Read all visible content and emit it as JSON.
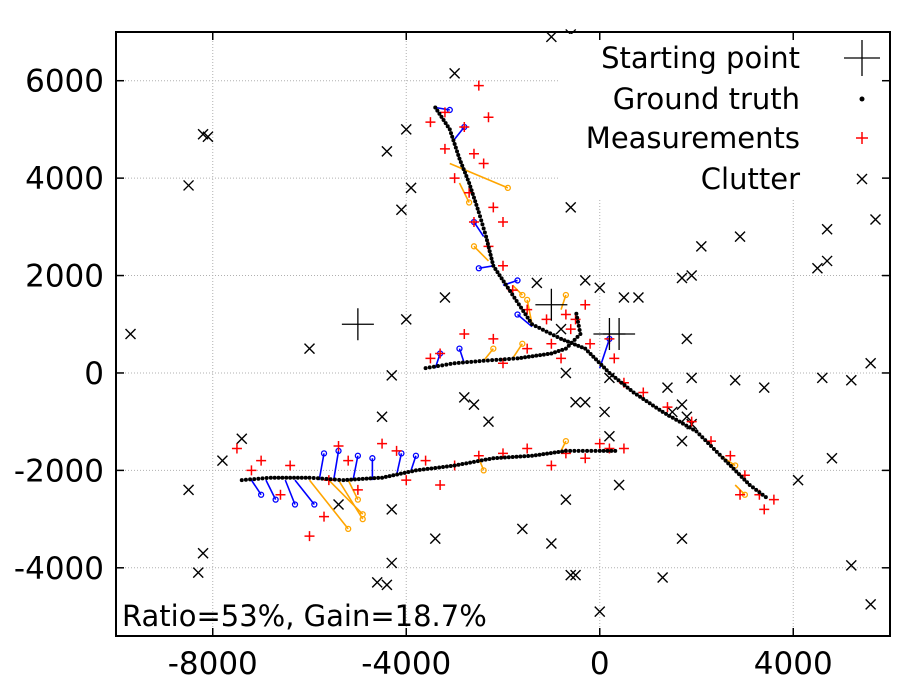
{
  "chart_data": {
    "type": "scatter",
    "xlim": [
      -10000,
      6000
    ],
    "ylim": [
      -5400,
      7000
    ],
    "x_ticks": [
      -8000,
      -4000,
      0,
      4000
    ],
    "y_ticks": [
      -4000,
      -2000,
      0,
      2000,
      4000,
      6000
    ],
    "x_tick_labels": [
      "-8000",
      "-4000",
      "0",
      "4000"
    ],
    "y_tick_labels": [
      "-4000",
      "-2000",
      "0",
      "2000",
      "4000",
      "6000"
    ],
    "grid": true,
    "legend_position": "top-right",
    "annotation": "Ratio=53%, Gain=18.7%",
    "legend": [
      {
        "label": "Starting point",
        "marker": "plus-large",
        "color": "#000000"
      },
      {
        "label": "Ground truth",
        "marker": "dot",
        "color": "#000000"
      },
      {
        "label": "Measurements",
        "marker": "plus",
        "color": "#ff0000"
      },
      {
        "label": "Clutter",
        "marker": "x",
        "color": "#000000"
      }
    ],
    "colors": {
      "truth": "#000000",
      "measurement": "#ff0000",
      "track_a": "#0000ff",
      "track_b": "#ffa500",
      "clutter": "#000000",
      "grid": "#b0b0b0"
    },
    "starting_points": [
      {
        "x": 200,
        "y": 800
      },
      {
        "x": 400,
        "y": 800
      },
      {
        "x": -1000,
        "y": 1400
      },
      {
        "x": -5000,
        "y": 1000
      }
    ],
    "ground_truth_paths": [
      {
        "name": "track-north",
        "points": [
          [
            -3400,
            5450
          ],
          [
            -3100,
            5000
          ],
          [
            -2900,
            4400
          ],
          [
            -2700,
            3900
          ],
          [
            -2500,
            3300
          ],
          [
            -2350,
            2800
          ],
          [
            -2200,
            2200
          ],
          [
            -1900,
            1750
          ],
          [
            -1400,
            1000
          ],
          [
            -800,
            700
          ],
          [
            -300,
            500
          ],
          [
            200,
            0
          ],
          [
            700,
            -400
          ],
          [
            1300,
            -800
          ],
          [
            2000,
            -1200
          ],
          [
            2600,
            -1800
          ],
          [
            3100,
            -2300
          ],
          [
            3500,
            -2600
          ]
        ]
      },
      {
        "name": "track-middle",
        "points": [
          [
            -3600,
            100
          ],
          [
            -3000,
            200
          ],
          [
            -2400,
            250
          ],
          [
            -1700,
            300
          ],
          [
            -1000,
            400
          ],
          [
            -700,
            500
          ],
          [
            -400,
            800
          ],
          [
            -500,
            1300
          ]
        ]
      },
      {
        "name": "track-south",
        "points": [
          [
            -7400,
            -2200
          ],
          [
            -6800,
            -2150
          ],
          [
            -6000,
            -2150
          ],
          [
            -5300,
            -2200
          ],
          [
            -4500,
            -2150
          ],
          [
            -3800,
            -2000
          ],
          [
            -3000,
            -1900
          ],
          [
            -2200,
            -1750
          ],
          [
            -1400,
            -1700
          ],
          [
            -700,
            -1600
          ],
          [
            0,
            -1600
          ],
          [
            400,
            -1600
          ]
        ]
      }
    ],
    "measurements": [
      [
        -3500,
        5150
      ],
      [
        -3200,
        5350
      ],
      [
        -2800,
        5050
      ],
      [
        -2500,
        5900
      ],
      [
        -2300,
        5250
      ],
      [
        -3200,
        4600
      ],
      [
        -2600,
        4500
      ],
      [
        -2400,
        4300
      ],
      [
        -3000,
        4000
      ],
      [
        -2700,
        3700
      ],
      [
        -2200,
        3400
      ],
      [
        -2600,
        3100
      ],
      [
        -2000,
        3100
      ],
      [
        -2300,
        2600
      ],
      [
        -2000,
        2200
      ],
      [
        -1800,
        1700
      ],
      [
        -1500,
        1300
      ],
      [
        -1100,
        1100
      ],
      [
        -600,
        900
      ],
      [
        -200,
        600
      ],
      [
        300,
        300
      ],
      [
        500,
        -200
      ],
      [
        900,
        -400
      ],
      [
        1400,
        -700
      ],
      [
        1900,
        -1000
      ],
      [
        2300,
        -1400
      ],
      [
        2700,
        -1700
      ],
      [
        3000,
        -2100
      ],
      [
        3300,
        -2500
      ],
      [
        3600,
        -2600
      ],
      [
        2900,
        -2500
      ],
      [
        3400,
        -2800
      ],
      [
        -3500,
        300
      ],
      [
        -3300,
        400
      ],
      [
        -2800,
        800
      ],
      [
        -2200,
        700
      ],
      [
        -2000,
        200
      ],
      [
        -1500,
        500
      ],
      [
        -1000,
        600
      ],
      [
        -800,
        300
      ],
      [
        -500,
        1100
      ],
      [
        -700,
        1200
      ],
      [
        -300,
        1400
      ],
      [
        200,
        700
      ],
      [
        -7500,
        -1550
      ],
      [
        -7200,
        -2000
      ],
      [
        -7000,
        -1800
      ],
      [
        -6600,
        -2500
      ],
      [
        -6400,
        -1900
      ],
      [
        -6000,
        -3350
      ],
      [
        -5700,
        -2950
      ],
      [
        -5600,
        -2200
      ],
      [
        -5400,
        -1500
      ],
      [
        -5200,
        -1800
      ],
      [
        -5000,
        -2400
      ],
      [
        -4500,
        -1450
      ],
      [
        -4200,
        -1600
      ],
      [
        -4000,
        -2200
      ],
      [
        -3600,
        -1800
      ],
      [
        -3300,
        -2300
      ],
      [
        -3000,
        -1900
      ],
      [
        -2500,
        -1700
      ],
      [
        -2000,
        -1650
      ],
      [
        -1500,
        -1550
      ],
      [
        -1000,
        -1900
      ],
      [
        -700,
        -1650
      ],
      [
        -300,
        -1750
      ],
      [
        0,
        -1450
      ],
      [
        200,
        -1550
      ],
      [
        500,
        -1550
      ]
    ],
    "clutter": [
      [
        -9700,
        800
      ],
      [
        -8200,
        4900
      ],
      [
        -8100,
        4850
      ],
      [
        -8500,
        3850
      ],
      [
        -7800,
        -1800
      ],
      [
        -8500,
        -2400
      ],
      [
        -8200,
        -3700
      ],
      [
        -8300,
        -4100
      ],
      [
        -7400,
        -1350
      ],
      [
        -5400,
        -2700
      ],
      [
        -6000,
        500
      ],
      [
        -4600,
        -4300
      ],
      [
        -4400,
        -4350
      ],
      [
        -4300,
        -3900
      ],
      [
        -4500,
        -900
      ],
      [
        -4300,
        -50
      ],
      [
        -4000,
        1100
      ],
      [
        -4100,
        3350
      ],
      [
        -3900,
        3800
      ],
      [
        -4400,
        4550
      ],
      [
        -4000,
        5000
      ],
      [
        -3000,
        6150
      ],
      [
        -3200,
        1550
      ],
      [
        -2800,
        -500
      ],
      [
        -2600,
        -650
      ],
      [
        -2300,
        -1000
      ],
      [
        -1600,
        -3200
      ],
      [
        -1000,
        -3500
      ],
      [
        -1300,
        1850
      ],
      [
        -800,
        900
      ],
      [
        -600,
        3400
      ],
      [
        -600,
        6950
      ],
      [
        -1000,
        6900
      ],
      [
        -700,
        -2600
      ],
      [
        -600,
        -4150
      ],
      [
        -500,
        -4150
      ],
      [
        -300,
        -600
      ],
      [
        -300,
        1900
      ],
      [
        0,
        -4900
      ],
      [
        0,
        1750
      ],
      [
        100,
        -800
      ],
      [
        200,
        -1300
      ],
      [
        400,
        -2300
      ],
      [
        500,
        1550
      ],
      [
        800,
        1550
      ],
      [
        1300,
        -4200
      ],
      [
        1400,
        -300
      ],
      [
        1500,
        -800
      ],
      [
        1700,
        -1400
      ],
      [
        1700,
        -650
      ],
      [
        1800,
        -900
      ],
      [
        1900,
        -1050
      ],
      [
        1700,
        -3400
      ],
      [
        1800,
        700
      ],
      [
        1900,
        -100
      ],
      [
        1700,
        1950
      ],
      [
        1900,
        2000
      ],
      [
        2100,
        2600
      ],
      [
        2800,
        -150
      ],
      [
        2900,
        2800
      ],
      [
        3400,
        -300
      ],
      [
        4100,
        -2200
      ],
      [
        4500,
        2150
      ],
      [
        4600,
        -100
      ],
      [
        4700,
        2950
      ],
      [
        4700,
        2300
      ],
      [
        4800,
        -1750
      ],
      [
        5200,
        -3950
      ],
      [
        5200,
        -150
      ],
      [
        5600,
        -4750
      ],
      [
        5600,
        200
      ],
      [
        5700,
        3150
      ],
      [
        -4300,
        -2800
      ],
      [
        -3400,
        -3400
      ],
      [
        -700,
        0
      ],
      [
        -500,
        -600
      ],
      [
        200,
        -100
      ]
    ],
    "association_segments_blue": [
      [
        [
          -7200,
          -2200
        ],
        [
          -7000,
          -2500
        ]
      ],
      [
        [
          -6900,
          -2200
        ],
        [
          -6700,
          -2600
        ]
      ],
      [
        [
          -6500,
          -2200
        ],
        [
          -6300,
          -2700
        ]
      ],
      [
        [
          -6300,
          -2200
        ],
        [
          -5900,
          -2700
        ]
      ],
      [
        [
          -5800,
          -2200
        ],
        [
          -5700,
          -1650
        ]
      ],
      [
        [
          -5500,
          -2200
        ],
        [
          -5400,
          -1600
        ]
      ],
      [
        [
          -5100,
          -2200
        ],
        [
          -5000,
          -1700
        ]
      ],
      [
        [
          -4700,
          -2200
        ],
        [
          -4700,
          -1750
        ]
      ],
      [
        [
          -4200,
          -2100
        ],
        [
          -4100,
          -1650
        ]
      ],
      [
        [
          -3900,
          -2000
        ],
        [
          -3800,
          -1700
        ]
      ],
      [
        [
          -3400,
          5450
        ],
        [
          -3100,
          5400
        ]
      ],
      [
        [
          -3000,
          4800
        ],
        [
          -2800,
          5050
        ]
      ],
      [
        [
          -2400,
          2800
        ],
        [
          -2600,
          3100
        ]
      ],
      [
        [
          -2200,
          2200
        ],
        [
          -2500,
          2150
        ]
      ],
      [
        [
          -2000,
          1800
        ],
        [
          -1700,
          1900
        ]
      ],
      [
        [
          -3400,
          100
        ],
        [
          -3300,
          400
        ]
      ],
      [
        [
          -2800,
          200
        ],
        [
          -2900,
          500
        ]
      ],
      [
        [
          -1400,
          950
        ],
        [
          -1700,
          1200
        ]
      ],
      [
        [
          0,
          100
        ],
        [
          200,
          700
        ]
      ]
    ],
    "association_segments_orange": [
      [
        [
          -6000,
          -2200
        ],
        [
          -5200,
          -3200
        ]
      ],
      [
        [
          -5600,
          -2200
        ],
        [
          -4900,
          -2900
        ]
      ],
      [
        [
          -5400,
          -2200
        ],
        [
          -4900,
          -3000
        ]
      ],
      [
        [
          -5200,
          -2200
        ],
        [
          -5000,
          -2600
        ]
      ],
      [
        [
          -3100,
          4300
        ],
        [
          -1900,
          3800
        ]
      ],
      [
        [
          -2900,
          3900
        ],
        [
          -2700,
          3500
        ]
      ],
      [
        [
          -2300,
          2300
        ],
        [
          -2600,
          2600
        ]
      ],
      [
        [
          -1800,
          1800
        ],
        [
          -1600,
          1600
        ]
      ],
      [
        [
          -1400,
          1000
        ],
        [
          -1500,
          1500
        ]
      ],
      [
        [
          -800,
          1300
        ],
        [
          -700,
          1600
        ]
      ],
      [
        [
          -2400,
          250
        ],
        [
          -2200,
          500
        ]
      ],
      [
        [
          -1800,
          300
        ],
        [
          -1600,
          600
        ]
      ],
      [
        [
          -800,
          -1600
        ],
        [
          -700,
          -1400
        ]
      ],
      [
        [
          -2500,
          -1750
        ],
        [
          -2400,
          -2000
        ]
      ],
      [
        [
          2800,
          -2300
        ],
        [
          3000,
          -2500
        ]
      ],
      [
        [
          2500,
          -1700
        ],
        [
          2800,
          -1900
        ]
      ]
    ]
  }
}
